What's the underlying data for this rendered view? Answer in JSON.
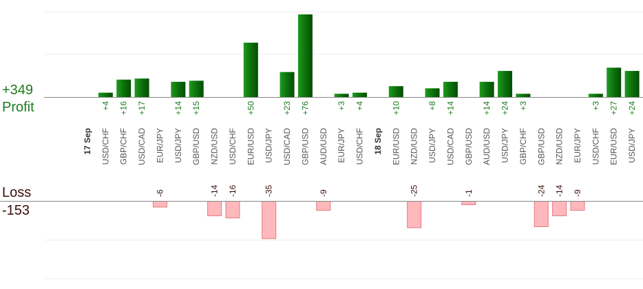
{
  "summary": {
    "profit_total": "+349",
    "profit_label": "Profit",
    "loss_label": "Loss",
    "loss_total": "-153"
  },
  "colors": {
    "profit_bar": "#0a6e0a",
    "profit_bar_light": "#1f9a1f",
    "profit_text": "#1e7a1e",
    "loss_bar": "#ffb8bc",
    "loss_bar_border": "#e07a80",
    "loss_text": "#3a0d0d",
    "axis": "#888888",
    "grid": "#eeeeee",
    "tick_text": "#555555",
    "date_text": "#333333"
  },
  "chart_data": {
    "type": "bar",
    "title": "",
    "xlabel": "",
    "ylabel": "",
    "grid": true,
    "categories": [
      {
        "label": "17 Sep",
        "kind": "date"
      },
      {
        "label": "USD/CHF"
      },
      {
        "label": "GBP/CHF"
      },
      {
        "label": "USD/CAD"
      },
      {
        "label": "EUR/JPY"
      },
      {
        "label": "USD/JPY"
      },
      {
        "label": "GBP/USD"
      },
      {
        "label": "NZD/USD"
      },
      {
        "label": "USD/CHF"
      },
      {
        "label": "EUR/USD"
      },
      {
        "label": "USD/JPY"
      },
      {
        "label": "USD/CAD"
      },
      {
        "label": "GBP/USD"
      },
      {
        "label": "AUD/USD"
      },
      {
        "label": "EUR/JPY"
      },
      {
        "label": "USD/CHF"
      },
      {
        "label": "18 Sep",
        "kind": "date"
      },
      {
        "label": "EUR/USD"
      },
      {
        "label": "NZD/USD"
      },
      {
        "label": "USD/JPY"
      },
      {
        "label": "USD/CAD"
      },
      {
        "label": "GBP/USD"
      },
      {
        "label": "AUD/USD"
      },
      {
        "label": "USD/JPY"
      },
      {
        "label": "GBP/CHF"
      },
      {
        "label": "GBP/USD"
      },
      {
        "label": "NZD/USD"
      },
      {
        "label": "EUR/JPY"
      },
      {
        "label": "USD/CHF"
      },
      {
        "label": "EUR/USD"
      },
      {
        "label": "USD/JPY"
      }
    ],
    "series": [
      {
        "values": [
          null,
          4,
          16,
          17,
          null,
          14,
          15,
          null,
          null,
          50,
          null,
          23,
          76,
          null,
          3,
          4,
          null,
          10,
          null,
          8,
          14,
          null,
          14,
          24,
          3,
          null,
          null,
          null,
          3,
          27,
          24
        ],
        "labels": [
          null,
          "+4",
          "+16",
          "+17",
          null,
          "+14",
          "+15",
          null,
          null,
          "+50",
          null,
          "+23",
          "+76",
          null,
          "+3",
          "+4",
          null,
          "+10",
          null,
          "+8",
          "+14",
          null,
          "+14",
          "+24",
          "+3",
          null,
          null,
          null,
          "+3",
          "+27",
          "+24"
        ]
      },
      {
        "values": [
          null,
          null,
          null,
          null,
          -6,
          null,
          null,
          -14,
          -16,
          null,
          -35,
          null,
          null,
          -9,
          null,
          null,
          null,
          null,
          -25,
          null,
          null,
          -1,
          null,
          null,
          null,
          -24,
          -14,
          -9,
          null,
          null,
          null
        ],
        "labels": [
          null,
          null,
          null,
          null,
          "-6",
          null,
          null,
          "-14",
          "-16",
          null,
          "-35",
          null,
          null,
          "-9",
          null,
          null,
          null,
          null,
          "-25",
          null,
          null,
          "-1",
          null,
          null,
          null,
          "-24",
          "-14",
          "-9",
          null,
          null,
          null
        ]
      }
    ]
  }
}
